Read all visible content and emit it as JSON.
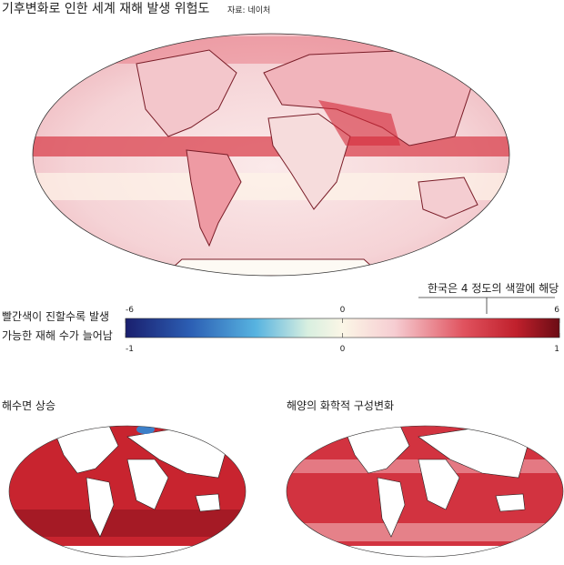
{
  "title": "기후변화로 인한 세계 재해 발생 위험도",
  "source": "자료: 네이처",
  "legend": {
    "note_lines": [
      "빨간색이 진할수록 발생",
      "가능한 재해 수가 늘어남"
    ],
    "callout": "한국은 4 정도의 색깔에 해당",
    "top_ticks": [
      -6,
      0,
      6
    ],
    "bottom_ticks": [
      -1,
      0,
      1
    ]
  },
  "maps": [
    {
      "title": "해수면 상승"
    },
    {
      "title": "해양의 화학적 구성변화"
    }
  ]
}
